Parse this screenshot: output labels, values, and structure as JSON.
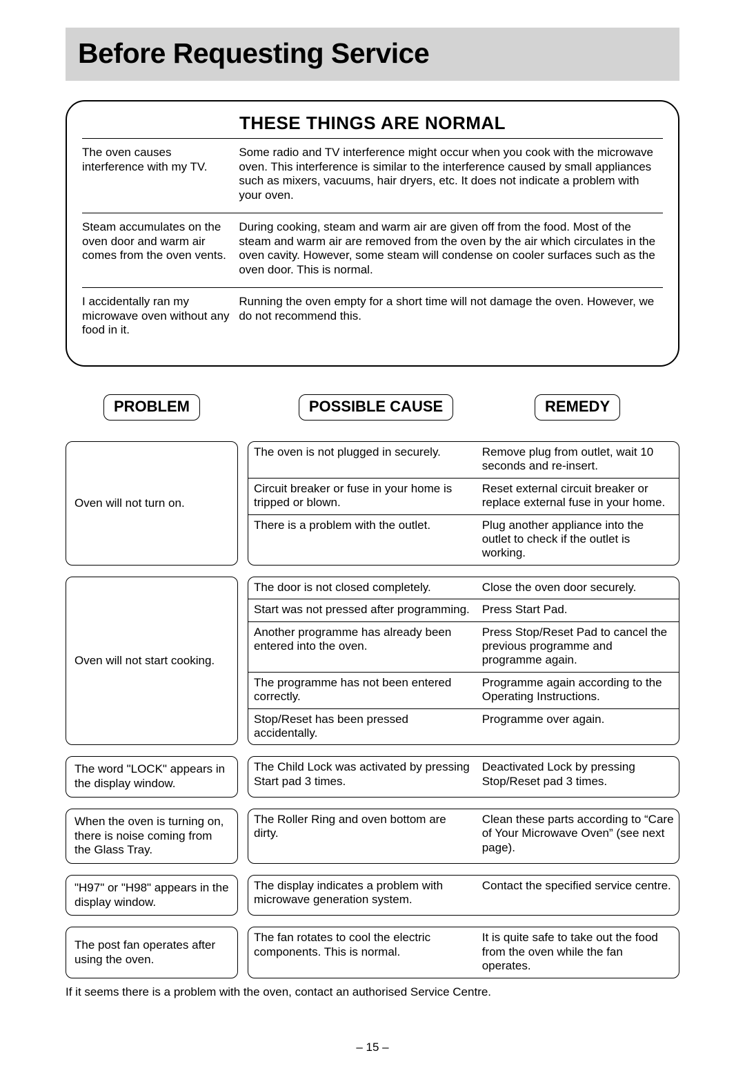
{
  "page": {
    "title": "Before Requesting Service",
    "normal_title": "THESE THINGS ARE NORMAL",
    "footer_note": "If it seems there is a problem with the oven, contact an authorised Service Centre.",
    "page_number": "– 15 –",
    "colors": {
      "titlebar_bg": "#d3d3d3",
      "border": "#000000",
      "text": "#000000",
      "bg": "#ffffff"
    },
    "fontsize": {
      "title": 41,
      "section": 26,
      "header": 22,
      "body": 17
    }
  },
  "headers": {
    "problem": "PROBLEM",
    "cause": "POSSIBLE CAUSE",
    "remedy": "REMEDY"
  },
  "normal_items": [
    {
      "left": "The oven causes interference with my TV.",
      "right": "Some radio and TV interference might occur when you cook with the microwave oven. This interference is similar to the interference caused by small appliances such as mixers, vacuums, hair dryers, etc. It does not indicate a problem with your oven."
    },
    {
      "left": "Steam accumulates on the oven door and warm air comes from the oven vents.",
      "right": "During cooking, steam and warm air are given off from the food. Most of the steam and warm air are removed from the oven by the air which circulates in the oven cavity. However, some steam will condense on cooler surfaces such as the oven door. This is normal."
    },
    {
      "left": "I accidentally ran my microwave oven without any food in it.",
      "right": "Running the oven empty for a short time will not damage the oven. However, we do not recommend this."
    }
  ],
  "troubleshoot": [
    {
      "problem": "Oven will not turn on.",
      "rows": [
        {
          "cause": "The oven is not plugged in securely.",
          "remedy": "Remove plug from outlet, wait 10 seconds and re-insert."
        },
        {
          "cause": "Circuit breaker or fuse in your home is tripped or blown.",
          "remedy": "Reset external circuit breaker or replace external fuse in your home."
        },
        {
          "cause": "There is a problem with the outlet.",
          "remedy": "Plug another appliance into the outlet to check if the outlet is working."
        }
      ]
    },
    {
      "problem": "Oven will not start cooking.",
      "rows": [
        {
          "cause": "The door is not closed completely.",
          "remedy": "Close the oven door securely."
        },
        {
          "cause": "Start was not pressed after programming.",
          "remedy": "Press Start  Pad."
        },
        {
          "cause": "Another programme has already been entered into the oven.",
          "remedy": "Press Stop/Reset Pad to cancel the previous programme and programme again."
        },
        {
          "cause": "The programme has not been entered correctly.",
          "remedy": "Programme again according to the Operating Instructions."
        },
        {
          "cause": "Stop/Reset has been pressed accidentally.",
          "remedy": "Programme over again."
        }
      ]
    },
    {
      "problem": "The word \"LOCK\" appears in the display window.",
      "rows": [
        {
          "cause": "The Child Lock was activated by pressing Start pad 3 times.",
          "remedy": "Deactivated Lock by pressing Stop/Reset pad 3 times."
        }
      ]
    },
    {
      "problem": "When the oven is turning on, there is noise coming from the Glass Tray.",
      "rows": [
        {
          "cause": "The Roller Ring and oven bottom are dirty.",
          "remedy": "Clean these parts according to “Care of Your Microwave Oven” (see next page)."
        }
      ]
    },
    {
      "problem": "\"H97\" or \"H98\" appears in the display window.",
      "rows": [
        {
          "cause": "The display indicates a problem with microwave generation system.",
          "remedy": "Contact the specified service centre."
        }
      ]
    },
    {
      "problem": "The post fan operates after using the oven.",
      "rows": [
        {
          "cause": "The fan rotates to cool the electric components. This is normal.",
          "remedy": "It is quite safe to take out the food from the oven while the fan operates."
        }
      ]
    }
  ]
}
